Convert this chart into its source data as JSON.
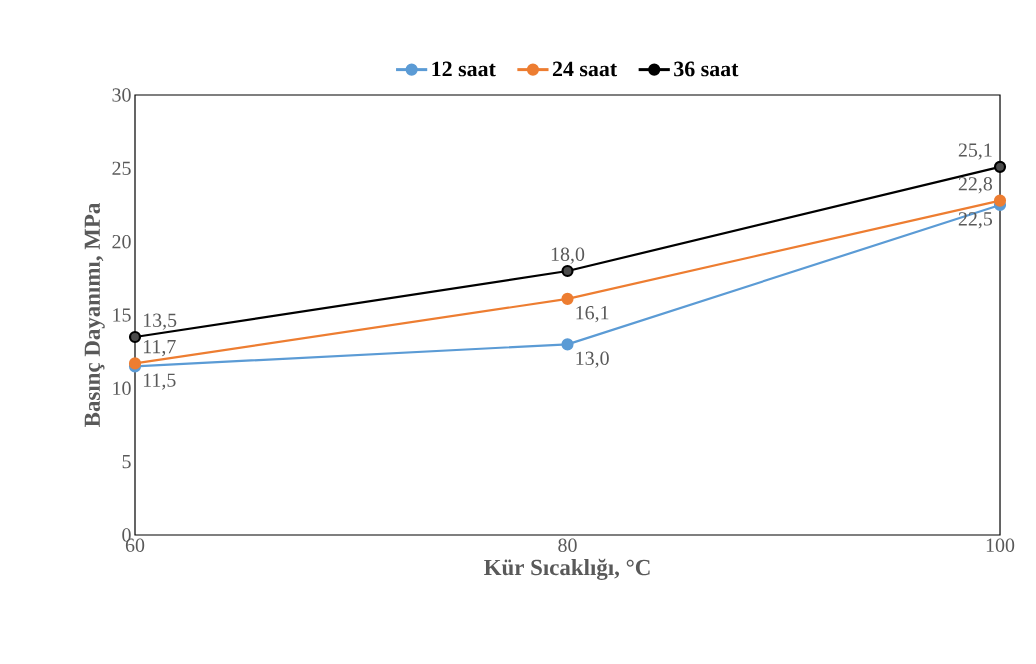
{
  "chart_data": {
    "type": "line",
    "xlabel": "Kür Sıcaklığı, °C",
    "ylabel": "Basınç Dayanımı, MPa",
    "x": [
      60,
      80,
      100
    ],
    "xlim": [
      60,
      100
    ],
    "xticks": [
      60,
      80,
      100
    ],
    "ylim": [
      0,
      30
    ],
    "yticks": [
      0,
      5,
      10,
      15,
      20,
      25,
      30
    ],
    "grid": false,
    "legend": "top",
    "marker": "circle",
    "line_style": "solid",
    "series": [
      {
        "name": "12 saat",
        "color": "#5b9bd5",
        "values": [
          11.5,
          13.0,
          22.5
        ],
        "value_labels": [
          "11,5",
          "13,0",
          "22,5"
        ]
      },
      {
        "name": "24 saat",
        "color": "#ed7d31",
        "values": [
          11.7,
          16.1,
          22.8
        ],
        "value_labels": [
          "11,7",
          "16,1",
          "22,8"
        ]
      },
      {
        "name": "36 saat",
        "color": "#000000",
        "values": [
          13.5,
          18.0,
          25.1
        ],
        "value_labels": [
          "13,5",
          "18,0",
          "25,1"
        ]
      }
    ]
  }
}
